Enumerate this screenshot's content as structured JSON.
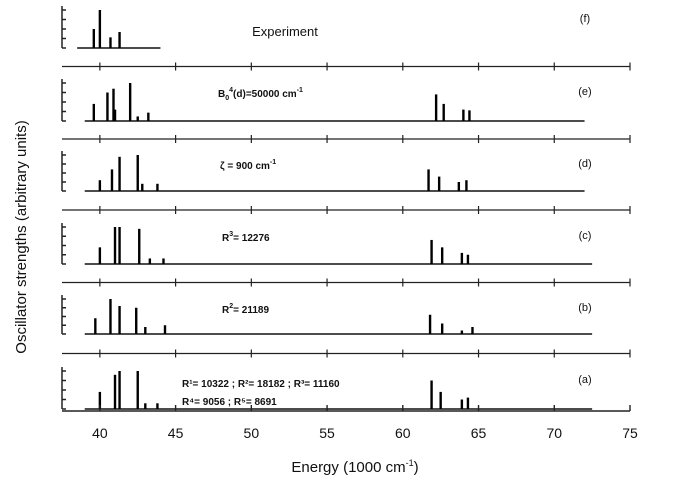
{
  "chart_data": {
    "type": "bar",
    "xlabel": "Energy (1000 cm",
    "xlabel_sup": "-1",
    "xlabel_end": ")",
    "ylabel": "Oscillator strengths (arbitrary units)",
    "xlim": [
      37.5,
      75
    ],
    "x_ticks": [
      "40",
      "45",
      "50",
      "55",
      "60",
      "65",
      "70",
      "75"
    ],
    "ylim": [
      0,
      1
    ],
    "grid": false,
    "panels": [
      {
        "id": "f",
        "label": "(f)",
        "note": "Experiment",
        "baseline": [
          38.5,
          44
        ],
        "bars": [
          {
            "x": 39.6,
            "y": 0.5
          },
          {
            "x": 40.0,
            "y": 1.0
          },
          {
            "x": 40.7,
            "y": 0.28
          },
          {
            "x": 41.3,
            "y": 0.42
          }
        ]
      },
      {
        "id": "e",
        "label": "(e)",
        "note": "B",
        "note_sub": "0",
        "note_sup": "4",
        "note_rest": "(d)=50000 cm",
        "note_unit_sup": "-1",
        "baseline": [
          39.0,
          72
        ],
        "bars": [
          {
            "x": 39.6,
            "y": 0.45
          },
          {
            "x": 40.5,
            "y": 0.75
          },
          {
            "x": 40.9,
            "y": 0.85
          },
          {
            "x": 41.0,
            "y": 0.3
          },
          {
            "x": 42.0,
            "y": 1.0
          },
          {
            "x": 42.5,
            "y": 0.12
          },
          {
            "x": 43.2,
            "y": 0.22
          },
          {
            "x": 62.2,
            "y": 0.7
          },
          {
            "x": 62.7,
            "y": 0.45
          },
          {
            "x": 64.0,
            "y": 0.3
          },
          {
            "x": 64.4,
            "y": 0.28
          }
        ]
      },
      {
        "id": "d",
        "label": "(d)",
        "note": "ζ = 900 cm",
        "note_unit_sup": "-1",
        "baseline": [
          39.0,
          72
        ],
        "bars": [
          {
            "x": 40.0,
            "y": 0.3
          },
          {
            "x": 40.8,
            "y": 0.6
          },
          {
            "x": 41.3,
            "y": 0.95
          },
          {
            "x": 42.5,
            "y": 1.0
          },
          {
            "x": 42.8,
            "y": 0.2
          },
          {
            "x": 43.8,
            "y": 0.2
          },
          {
            "x": 61.7,
            "y": 0.6
          },
          {
            "x": 62.4,
            "y": 0.4
          },
          {
            "x": 63.7,
            "y": 0.25
          },
          {
            "x": 64.2,
            "y": 0.3
          }
        ]
      },
      {
        "id": "c",
        "label": "(c)",
        "note": "R",
        "note_sup": "3",
        "note_rest": "= 12276",
        "baseline": [
          39.0,
          72.5
        ],
        "bars": [
          {
            "x": 40.0,
            "y": 0.45
          },
          {
            "x": 41.0,
            "y": 1.0
          },
          {
            "x": 41.3,
            "y": 1.0
          },
          {
            "x": 42.6,
            "y": 0.95
          },
          {
            "x": 43.3,
            "y": 0.15
          },
          {
            "x": 44.2,
            "y": 0.15
          },
          {
            "x": 61.9,
            "y": 0.65
          },
          {
            "x": 62.6,
            "y": 0.45
          },
          {
            "x": 63.9,
            "y": 0.3
          },
          {
            "x": 64.3,
            "y": 0.25
          }
        ]
      },
      {
        "id": "b",
        "label": "(b)",
        "note": "R",
        "note_sup": "2",
        "note_rest": "= 21189",
        "baseline": [
          39.0,
          72.5
        ],
        "bars": [
          {
            "x": 39.7,
            "y": 0.45
          },
          {
            "x": 40.7,
            "y": 1.0
          },
          {
            "x": 41.3,
            "y": 0.8
          },
          {
            "x": 42.4,
            "y": 0.75
          },
          {
            "x": 43.0,
            "y": 0.2
          },
          {
            "x": 44.3,
            "y": 0.25
          },
          {
            "x": 61.8,
            "y": 0.55
          },
          {
            "x": 62.6,
            "y": 0.3
          },
          {
            "x": 63.9,
            "y": 0.1
          },
          {
            "x": 64.6,
            "y": 0.2
          }
        ]
      },
      {
        "id": "a",
        "label": "(a)",
        "note_lines": [
          "R¹= 10322 ; R²= 18182 ; R³= 11160",
          "R⁴= 9056 ; R⁵= 8691"
        ],
        "baseline": [
          39.0,
          72.5
        ],
        "bars": [
          {
            "x": 40.0,
            "y": 0.45
          },
          {
            "x": 41.0,
            "y": 0.9
          },
          {
            "x": 41.3,
            "y": 1.0
          },
          {
            "x": 42.5,
            "y": 1.0
          },
          {
            "x": 43.0,
            "y": 0.15
          },
          {
            "x": 43.8,
            "y": 0.15
          },
          {
            "x": 61.9,
            "y": 0.75
          },
          {
            "x": 62.5,
            "y": 0.45
          },
          {
            "x": 63.9,
            "y": 0.25
          },
          {
            "x": 64.3,
            "y": 0.3
          }
        ]
      }
    ]
  }
}
